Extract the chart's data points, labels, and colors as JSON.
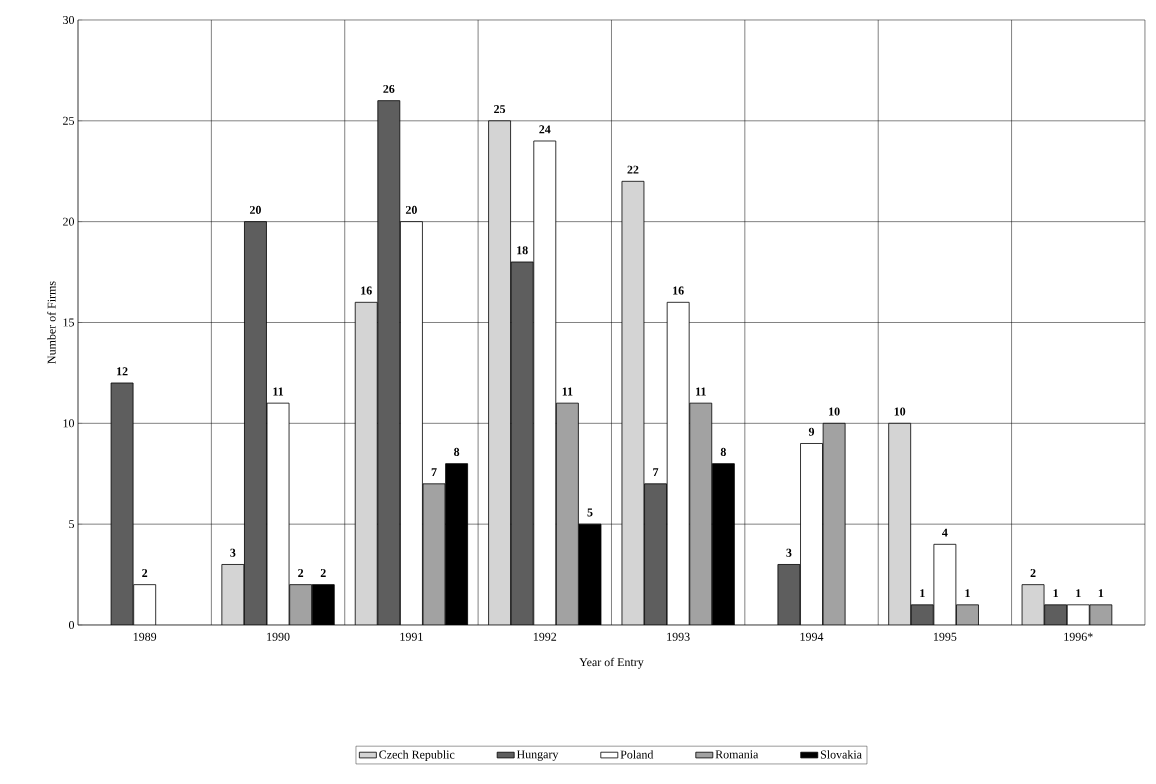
{
  "chart_data": {
    "type": "bar",
    "xlabel": "Year of Entry",
    "ylabel": "Number of Firms",
    "categories": [
      "1989",
      "1990",
      "1991",
      "1992",
      "1993",
      "1994",
      "1995",
      "1996*"
    ],
    "series": [
      {
        "name": "Czech Republic",
        "color": "#d4d4d4",
        "values": [
          null,
          3,
          16,
          25,
          22,
          null,
          10,
          2
        ]
      },
      {
        "name": "Hungary",
        "color": "#5e5e5e",
        "values": [
          12,
          20,
          26,
          18,
          7,
          3,
          1,
          1
        ]
      },
      {
        "name": "Poland",
        "color": "#ffffff",
        "values": [
          2,
          11,
          20,
          24,
          16,
          9,
          4,
          1
        ]
      },
      {
        "name": "Romania",
        "color": "#a2a2a2",
        "values": [
          null,
          2,
          7,
          11,
          11,
          10,
          1,
          1
        ]
      },
      {
        "name": "Slovakia",
        "color": "#000000",
        "values": [
          null,
          2,
          8,
          5,
          8,
          null,
          null,
          null
        ]
      }
    ],
    "ylim": [
      0,
      30
    ],
    "yticks": [
      0,
      5,
      10,
      15,
      20,
      25,
      30
    ],
    "grid": true,
    "legend": "bottom",
    "data_labels": true
  }
}
